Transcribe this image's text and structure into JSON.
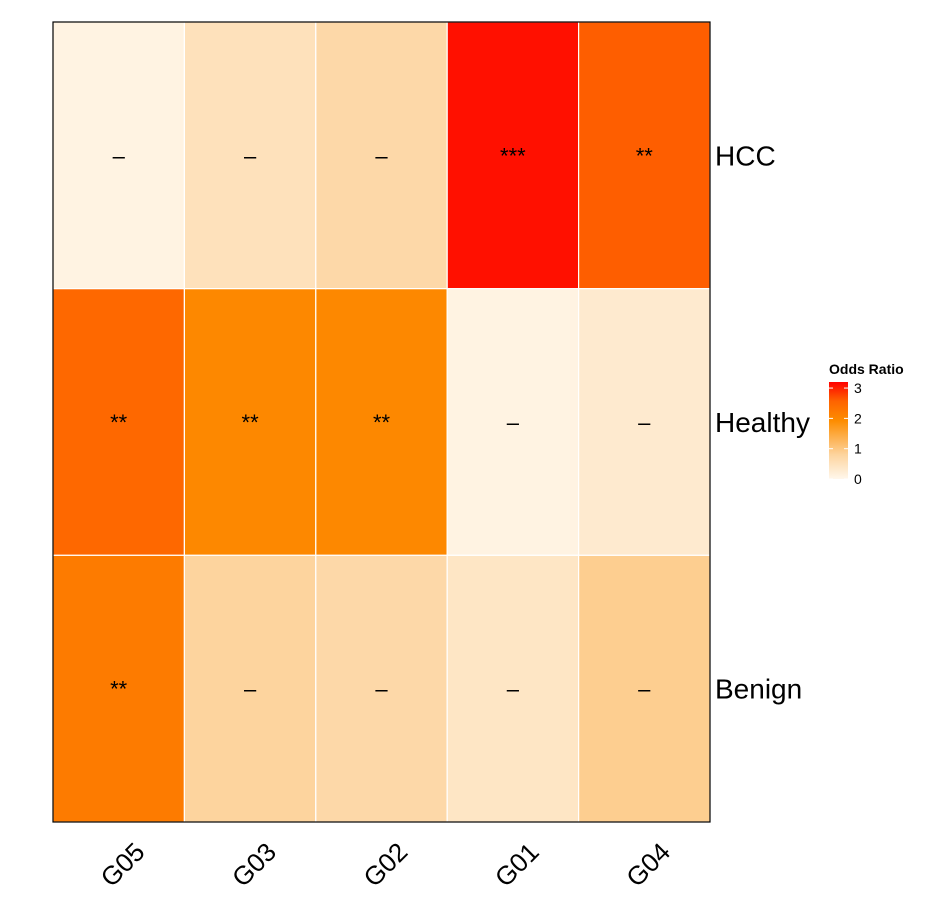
{
  "chart_data": {
    "type": "heatmap",
    "columns": [
      "G05",
      "G03",
      "G02",
      "G01",
      "G04"
    ],
    "rows": [
      "HCC",
      "Healthy",
      "Benign"
    ],
    "values": [
      [
        0.1,
        0.5,
        0.7,
        3.1,
        2.6
      ],
      [
        2.5,
        2.0,
        2.0,
        0.1,
        0.3
      ],
      [
        2.2,
        0.8,
        0.7,
        0.4,
        0.9
      ]
    ],
    "labels": [
      [
        "–",
        "–",
        "–",
        "***",
        "**"
      ],
      [
        "**",
        "**",
        "**",
        "–",
        "–"
      ],
      [
        "**",
        "–",
        "–",
        "–",
        "–"
      ]
    ],
    "legend": {
      "title": "Odds Ratio",
      "ticks": [
        0,
        1,
        2,
        3
      ],
      "range": [
        0,
        3.2
      ],
      "placement": "right"
    },
    "colors": {
      "low": "#fff7ec",
      "mid1": "#fdd49e",
      "mid2": "#fd8d00",
      "high": "#ff0000"
    }
  }
}
